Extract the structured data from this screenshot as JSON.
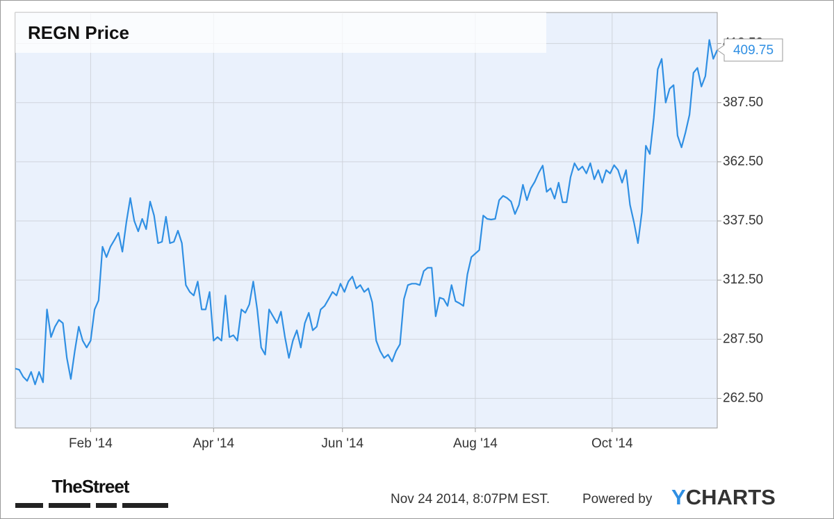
{
  "chart_data": {
    "type": "line",
    "title": "REGN Price",
    "color": "#2f8fe3",
    "grid": true,
    "ylim": [
      250,
      425.6
    ],
    "yticks": [
      {
        "value": 262.5,
        "label": "262.50"
      },
      {
        "value": 287.5,
        "label": "287.50"
      },
      {
        "value": 312.5,
        "label": "312.50"
      },
      {
        "value": 337.5,
        "label": "337.50"
      },
      {
        "value": 362.5,
        "label": "362.50"
      },
      {
        "value": 387.5,
        "label": "387.50"
      },
      {
        "value": 412.5,
        "label": "412.50"
      }
    ],
    "xlim": [
      0,
      177
    ],
    "xticks": [
      {
        "value": 19,
        "label": "Feb '14"
      },
      {
        "value": 50,
        "label": "Apr '14"
      },
      {
        "value": 82.5,
        "label": "Jun '14"
      },
      {
        "value": 116,
        "label": "Aug '14"
      },
      {
        "value": 150.5,
        "label": "Oct '14"
      }
    ],
    "values": [
      275.1,
      274.6,
      271.6,
      269.9,
      273.7,
      268.4,
      273.7,
      269.3,
      300.1,
      288.4,
      292.8,
      295.7,
      294.3,
      279.6,
      270.7,
      282.5,
      292.8,
      286.9,
      284,
      286.9,
      300.1,
      303.9,
      326.6,
      322.2,
      326.6,
      329.5,
      332.5,
      324.5,
      336.9,
      347.2,
      337.5,
      333.1,
      338.4,
      334,
      345.7,
      339.8,
      328.1,
      328.7,
      339.3,
      328.1,
      328.7,
      333.4,
      328.1,
      310.4,
      307.5,
      306,
      311.9,
      300.1,
      300.1,
      307.5,
      286.9,
      288.4,
      286.9,
      306,
      288.4,
      289.2,
      286.9,
      300.1,
      298.7,
      302.2,
      311.9,
      300.1,
      284,
      281,
      300.1,
      297.2,
      294.3,
      299.2,
      288.4,
      279.6,
      286.9,
      291.3,
      284,
      294.3,
      298.7,
      291.3,
      292.8,
      300.1,
      301.6,
      304.5,
      307.5,
      306,
      311,
      307.5,
      311.9,
      314,
      309,
      310.4,
      307.5,
      309,
      303.1,
      286.9,
      282.5,
      279.6,
      281,
      278.1,
      282.5,
      285.4,
      304.5,
      310.4,
      311,
      311,
      310.4,
      316.3,
      317.7,
      317.7,
      297.2,
      305.1,
      304.5,
      301.6,
      310.4,
      303.6,
      302.7,
      301.6,
      314.9,
      322.2,
      323.7,
      325.2,
      339.8,
      338.4,
      338.1,
      338.4,
      346.3,
      348.1,
      347.2,
      345.7,
      340.4,
      344.3,
      352.8,
      346.3,
      351.3,
      354.1,
      357.9,
      360.9,
      349.8,
      351.3,
      346.9,
      353.7,
      345.4,
      345.4,
      356,
      361.9,
      359,
      360.5,
      357.6,
      361.9,
      355.1,
      359,
      353.7,
      359,
      357.6,
      361.1,
      359,
      353.7,
      359,
      344.3,
      336.9,
      328.1,
      341.3,
      369.3,
      365.8,
      381,
      401.6,
      406,
      387.5,
      393.4,
      394.9,
      373.6,
      368.6,
      375,
      382.4,
      400.1,
      402.2,
      394.3,
      398.7,
      414,
      406,
      409.75
    ]
  },
  "footer": {
    "logo": "TheStreet",
    "timestamp": "Nov 24 2014, 8:07PM EST.",
    "powered_by": "Powered by",
    "brand": "YCHARTS"
  }
}
